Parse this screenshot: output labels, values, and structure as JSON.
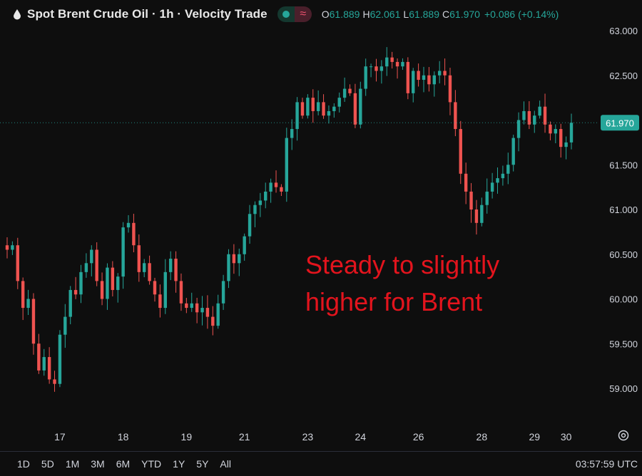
{
  "header": {
    "title": "Spot Brent Crude Oil · 1h · Velocity Trade",
    "status_wave": "≈",
    "ohlc": {
      "o_label": "O",
      "o_value": "61.889",
      "h_label": "H",
      "h_value": "62.061",
      "l_label": "L",
      "l_value": "61.889",
      "c_label": "C",
      "c_value": "61.970",
      "change": "+0.086 (+0.14%)"
    }
  },
  "annotation": {
    "line1": "Steady to slightly",
    "line2": "higher for Brent"
  },
  "footer": {
    "ranges": [
      "1D",
      "5D",
      "1M",
      "3M",
      "6M",
      "YTD",
      "1Y",
      "5Y",
      "All"
    ],
    "time": "03:57:59 UTC"
  },
  "colors": {
    "up": "#26a69a",
    "down": "#ef5350",
    "background": "#0e0e0e",
    "annotation": "#e3141d"
  },
  "chart_data": {
    "type": "candlestick",
    "ylim": [
      58.6,
      63.1
    ],
    "y_ticks": [
      "63.000",
      "62.500",
      "62.000",
      "61.500",
      "61.000",
      "60.500",
      "60.000",
      "59.500",
      "59.000"
    ],
    "x_ticks": [
      "17",
      "18",
      "19",
      "21",
      "23",
      "24",
      "26",
      "28",
      "29",
      "30"
    ],
    "last_price": "61.970",
    "grid": false,
    "close_path": [
      [
        "16",
        60.55
      ],
      [
        "16",
        60.6
      ],
      [
        "16",
        60.2
      ],
      [
        "16",
        59.9
      ],
      [
        "16",
        60.0
      ],
      [
        "16",
        59.5
      ],
      [
        "16",
        59.2
      ],
      [
        "16",
        59.35
      ],
      [
        "16",
        59.1
      ],
      [
        "16",
        59.05
      ],
      [
        "17",
        59.6
      ],
      [
        "17",
        59.8
      ],
      [
        "17",
        60.1
      ],
      [
        "17",
        60.05
      ],
      [
        "17",
        60.3
      ],
      [
        "17",
        60.4
      ],
      [
        "17",
        60.55
      ],
      [
        "17",
        60.2
      ],
      [
        "17",
        60.0
      ],
      [
        "17",
        60.35
      ],
      [
        "17",
        60.1
      ],
      [
        "17",
        60.25
      ],
      [
        "18",
        60.8
      ],
      [
        "18",
        60.85
      ],
      [
        "18",
        60.6
      ],
      [
        "18",
        60.3
      ],
      [
        "18",
        60.4
      ],
      [
        "18",
        60.2
      ],
      [
        "18",
        60.05
      ],
      [
        "18",
        59.9
      ],
      [
        "18",
        60.3
      ],
      [
        "18",
        60.45
      ],
      [
        "18",
        60.2
      ],
      [
        "18",
        59.95
      ],
      [
        "19",
        59.9
      ],
      [
        "19",
        59.95
      ],
      [
        "19",
        59.85
      ],
      [
        "19",
        59.9
      ],
      [
        "19",
        59.8
      ],
      [
        "19",
        59.7
      ],
      [
        "19",
        59.95
      ],
      [
        "19",
        60.2
      ],
      [
        "19",
        60.5
      ],
      [
        "19",
        60.4
      ],
      [
        "19",
        60.5
      ],
      [
        "21",
        60.7
      ],
      [
        "21",
        60.95
      ],
      [
        "21",
        61.05
      ],
      [
        "21",
        61.1
      ],
      [
        "21",
        61.2
      ],
      [
        "21",
        61.3
      ],
      [
        "21",
        61.25
      ],
      [
        "21",
        61.2
      ],
      [
        "21",
        61.8
      ],
      [
        "21",
        61.9
      ],
      [
        "21",
        62.2
      ],
      [
        "21",
        62.05
      ],
      [
        "23",
        62.25
      ],
      [
        "23",
        62.1
      ],
      [
        "23",
        62.2
      ],
      [
        "23",
        62.05
      ],
      [
        "23",
        62.1
      ],
      [
        "23",
        62.15
      ],
      [
        "23",
        62.25
      ],
      [
        "23",
        62.35
      ],
      [
        "23",
        62.3
      ],
      [
        "23",
        61.95
      ],
      [
        "24",
        62.35
      ],
      [
        "24",
        62.6
      ],
      [
        "24",
        62.6
      ],
      [
        "24",
        62.55
      ],
      [
        "24",
        62.6
      ],
      [
        "24",
        62.7
      ],
      [
        "24",
        62.65
      ],
      [
        "24",
        62.6
      ],
      [
        "24",
        62.65
      ],
      [
        "24",
        62.3
      ],
      [
        "24",
        62.55
      ],
      [
        "26",
        62.45
      ],
      [
        "26",
        62.5
      ],
      [
        "26",
        62.4
      ],
      [
        "26",
        62.5
      ],
      [
        "26",
        62.55
      ],
      [
        "26",
        62.5
      ],
      [
        "26",
        62.2
      ],
      [
        "26",
        61.9
      ],
      [
        "26",
        61.4
      ],
      [
        "26",
        61.2
      ],
      [
        "26",
        61.0
      ],
      [
        "26",
        60.85
      ],
      [
        "28",
        61.05
      ],
      [
        "28",
        61.2
      ],
      [
        "28",
        61.3
      ],
      [
        "28",
        61.35
      ],
      [
        "28",
        61.4
      ],
      [
        "28",
        61.5
      ],
      [
        "28",
        61.8
      ],
      [
        "28",
        62.0
      ],
      [
        "28",
        62.1
      ],
      [
        "28",
        61.95
      ],
      [
        "29",
        62.05
      ],
      [
        "29",
        62.15
      ],
      [
        "29",
        61.95
      ],
      [
        "29",
        61.85
      ],
      [
        "29",
        61.9
      ],
      [
        "29",
        61.7
      ],
      [
        "30",
        61.75
      ],
      [
        "30",
        61.97
      ]
    ]
  }
}
